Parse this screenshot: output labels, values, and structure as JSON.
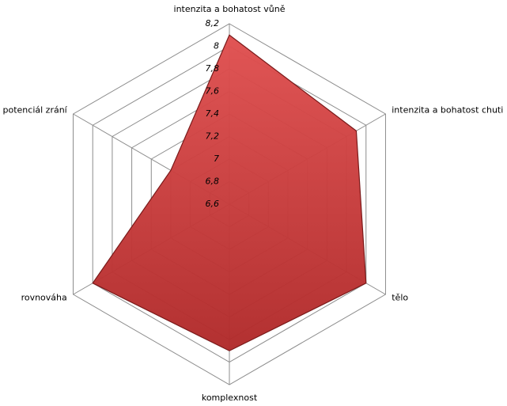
{
  "chart_data": {
    "type": "radar",
    "categories": [
      "intenzita a bohatost vůně",
      "intenzita a bohatost chuti",
      "tělo",
      "komplexnost",
      "rovnováha",
      "potenciál zrání"
    ],
    "series": [
      {
        "color": "#c83a3a",
        "values": [
          8.1,
          7.9,
          8.0,
          7.9,
          8.0,
          7.2
        ]
      }
    ],
    "ylim": [
      6.6,
      8.2
    ],
    "yticks": [
      {
        "value": 6.6,
        "label": "6,6"
      },
      {
        "value": 6.8,
        "label": "6,8"
      },
      7,
      {
        "value": 7.2,
        "label": "7,2"
      },
      {
        "value": 7.4,
        "label": "7,4"
      },
      {
        "value": 7.6,
        "label": "7,6"
      },
      {
        "value": 7.8,
        "label": "7,8"
      },
      8,
      {
        "value": 8.2,
        "label": "8,2"
      }
    ],
    "grid": true
  }
}
